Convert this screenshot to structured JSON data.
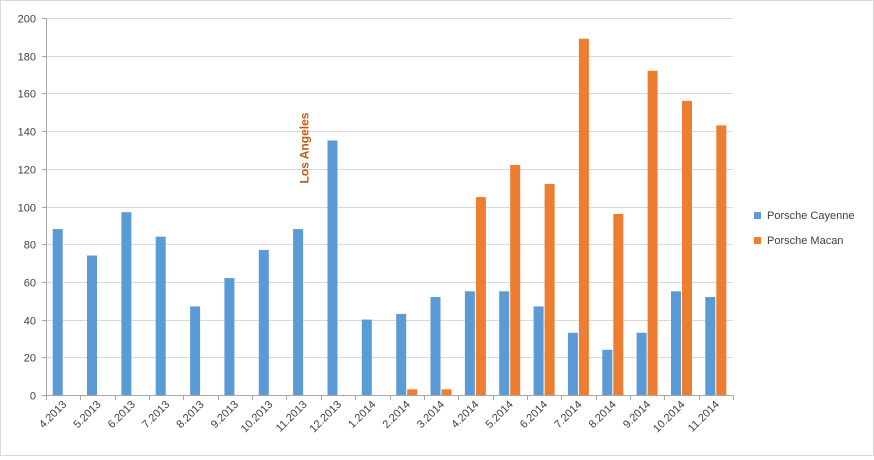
{
  "chart_data": {
    "type": "bar",
    "title": "",
    "xlabel": "",
    "ylabel": "",
    "ylim": [
      0,
      200
    ],
    "yticks": [
      0,
      20,
      40,
      60,
      80,
      100,
      120,
      140,
      160,
      180,
      200
    ],
    "grid": true,
    "legend_position": "right",
    "categories": [
      "4.2013",
      "5.2013",
      "6.2013",
      "7.2013",
      "8.2013",
      "9.2013",
      "10.2013",
      "11.2013",
      "12.2013",
      "1.2014",
      "2.2014",
      "3.2014",
      "4.2014",
      "5.2014",
      "6.2014",
      "7.2014",
      "8.2014",
      "9.2014",
      "10.2014",
      "11.2014"
    ],
    "series": [
      {
        "name": "Porsche Cayenne",
        "color": "#5b9bd5",
        "values": [
          88,
          74,
          97,
          84,
          47,
          62,
          77,
          88,
          135,
          40,
          43,
          52,
          55,
          55,
          47,
          33,
          24,
          33,
          55,
          52
        ]
      },
      {
        "name": "Porsche Macan",
        "color": "#ed7d31",
        "values": [
          0,
          0,
          0,
          0,
          0,
          0,
          0,
          0,
          0,
          0,
          3,
          3,
          105,
          122,
          112,
          189,
          96,
          172,
          156,
          143
        ]
      }
    ],
    "annotations": [
      {
        "text": "Los Angeles",
        "category": "11.2013",
        "color": "#c55a11"
      }
    ]
  }
}
